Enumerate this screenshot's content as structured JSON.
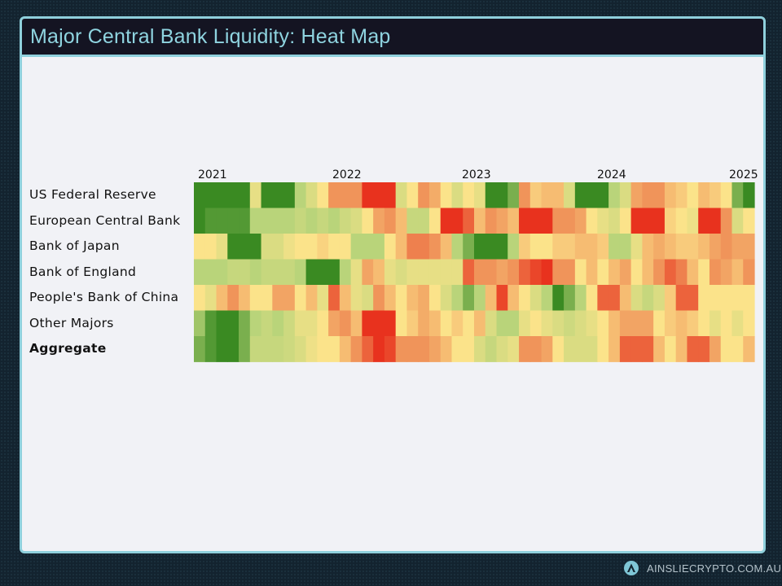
{
  "header": {
    "title": "Major Central Bank Liquidity: Heat Map"
  },
  "footer": {
    "brand": "AINSLIECRYPTO.COM.AU",
    "logo_icon": "ainslie-a-logo"
  },
  "chart_data": {
    "type": "heatmap",
    "title": "",
    "x_tick_labels": [
      "2021",
      "2022",
      "2023",
      "2024",
      "2025"
    ],
    "x_range": [
      "2021",
      "2025"
    ],
    "rows": [
      "US Federal Reserve",
      "European Central Bank",
      "Bank of Japan",
      "Bank of England",
      "People's Bank of China",
      "Other Majors",
      "Aggregate"
    ],
    "bold_rows": [
      "Aggregate"
    ],
    "color_scale": {
      "low": "#e8321e",
      "mid_low": "#f0945a",
      "mid": "#fbe38a",
      "mid_high": "#b9d47a",
      "high": "#3a8a22"
    },
    "value_range": [
      -2,
      2
    ],
    "grid": false,
    "legend": "none",
    "values": [
      [
        2,
        2,
        2,
        2,
        2,
        0.3,
        2,
        2,
        2,
        1,
        0.5,
        0,
        -1,
        -1,
        -1,
        -2,
        -2,
        -2,
        0.5,
        0,
        -1,
        -0.7,
        0,
        0.5,
        0,
        0.3,
        2,
        2,
        1.5,
        -1,
        -0.3,
        -0.5,
        -0.5,
        0.5,
        2,
        2,
        2,
        1,
        0.5,
        -0.8,
        -1,
        -1,
        -0.5,
        -0.3,
        0,
        -0.5,
        -0.3,
        0,
        1.5,
        2
      ],
      [
        2,
        1.8,
        1.8,
        1.8,
        1.8,
        1,
        1,
        1,
        1,
        0.8,
        1,
        0.8,
        1,
        0.7,
        0.5,
        0,
        -0.8,
        -1,
        -0.5,
        0.8,
        0.8,
        0,
        -2,
        -2,
        -1.5,
        -0.5,
        -1,
        -0.8,
        -0.5,
        -2,
        -2,
        -2,
        -1,
        -1,
        -0.8,
        0,
        0.3,
        0.5,
        0,
        -2,
        -2,
        -2,
        -0.2,
        0,
        0.2,
        -2,
        -2,
        -1,
        0.5,
        0
      ],
      [
        0,
        0,
        0.3,
        2,
        2,
        2,
        0.5,
        0.5,
        0.2,
        0,
        0,
        -0.2,
        0,
        0,
        1,
        1,
        1,
        0,
        -0.5,
        -1.2,
        -1.2,
        -1,
        -0.5,
        1,
        1.5,
        2,
        2,
        2,
        1,
        -0.3,
        0,
        0,
        -0.3,
        -0.3,
        -0.5,
        -0.5,
        -0.3,
        1,
        1,
        0.3,
        -0.5,
        -0.7,
        -0.5,
        -0.3,
        -0.3,
        -0.5,
        -0.8,
        -1,
        -0.8,
        -0.8
      ],
      [
        1,
        1,
        1,
        0.8,
        0.8,
        1,
        0.8,
        0.8,
        0.8,
        1,
        2,
        2,
        2,
        1,
        0.3,
        -0.8,
        -0.5,
        0.3,
        0.5,
        0.3,
        0.3,
        0.3,
        0.3,
        0.3,
        -1.5,
        -1,
        -1,
        -0.8,
        -1,
        -1.5,
        -1.8,
        -2,
        -1,
        -1,
        0,
        -0.5,
        0,
        -0.5,
        -0.8,
        0,
        -0.5,
        -1,
        -1.5,
        -1.2,
        -0.5,
        0,
        -1,
        -0.8,
        -0.5,
        -1
      ],
      [
        0,
        0.3,
        -0.5,
        -1,
        -0.5,
        0,
        0,
        -0.8,
        -0.8,
        0,
        -0.5,
        0.3,
        -1.5,
        -0.5,
        0.3,
        0.5,
        -1,
        -0.5,
        0,
        -0.5,
        -0.7,
        0,
        0.5,
        1,
        1.5,
        1,
        -0.5,
        -1.8,
        -0.5,
        0,
        0.5,
        1,
        2,
        1.5,
        1,
        0,
        -1.5,
        -1.5,
        -0.5,
        0.5,
        0.8,
        0.5,
        -0.3,
        -1.5,
        -1.5,
        0,
        0,
        0,
        0,
        0
      ],
      [
        1.2,
        1.8,
        2,
        2,
        1.5,
        1,
        0.8,
        1,
        0.7,
        0.3,
        0.3,
        0,
        -0.8,
        -1,
        -0.5,
        -2,
        -2,
        -2,
        0,
        -0.3,
        -0.7,
        -0.5,
        0,
        -0.3,
        0,
        -0.5,
        0.5,
        1,
        1,
        0.3,
        0,
        0.3,
        0.5,
        0.7,
        0.5,
        0.3,
        0,
        -0.5,
        -0.8,
        -0.8,
        -0.8,
        0,
        -0.3,
        -0.5,
        -0.3,
        0,
        0.3,
        0,
        0.3,
        0
      ],
      [
        1.5,
        1.8,
        2,
        2,
        1.5,
        0.8,
        0.8,
        0.8,
        0.7,
        0.5,
        0.2,
        0,
        0,
        -0.5,
        -1,
        -1.5,
        -2,
        -1.8,
        -1,
        -1,
        -1,
        -0.8,
        -0.5,
        0,
        0,
        0.5,
        0.8,
        0.5,
        0.3,
        -1,
        -1,
        -0.8,
        0,
        0.5,
        0.5,
        0.5,
        0,
        -0.5,
        -1.5,
        -1.5,
        -1.5,
        -0.5,
        0,
        -0.5,
        -1.5,
        -1.5,
        -0.8,
        0,
        0,
        -0.5
      ]
    ]
  }
}
